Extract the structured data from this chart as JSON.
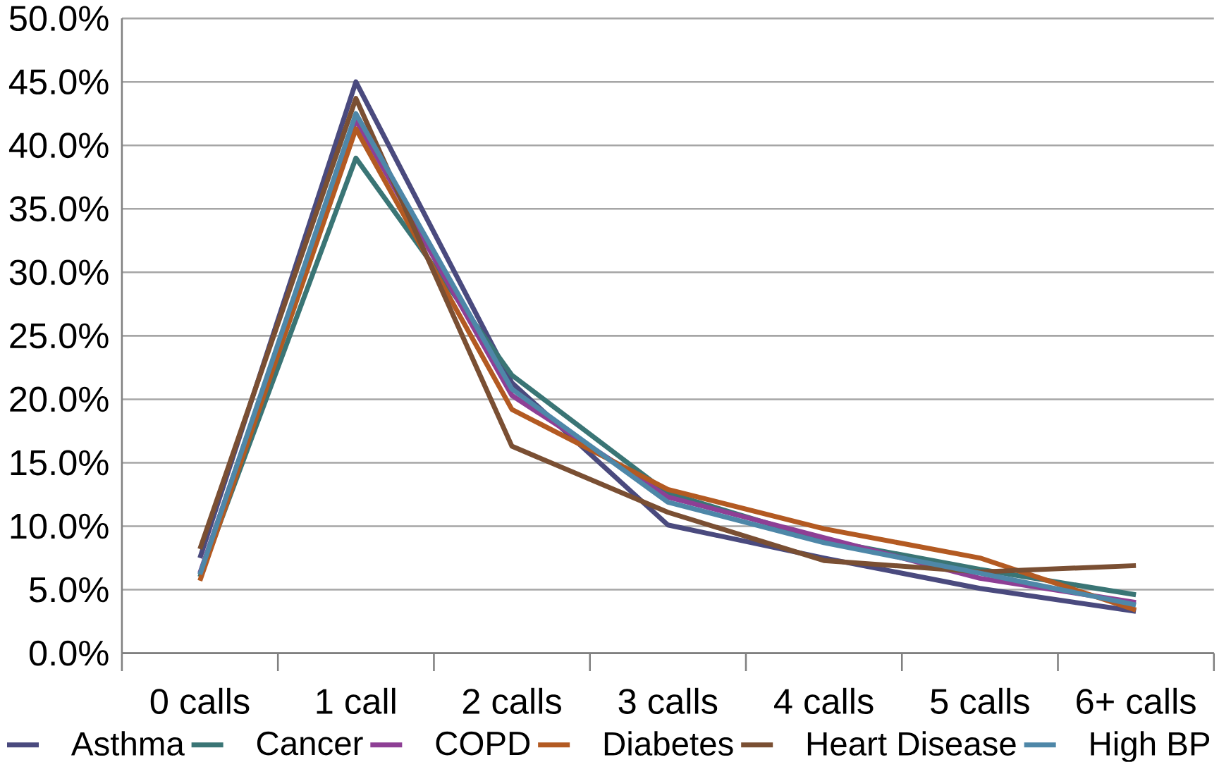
{
  "chart_data": {
    "type": "line",
    "categories": [
      "0 calls",
      "1 call",
      "2 calls",
      "3 calls",
      "4 calls",
      "5 calls",
      "6+ calls"
    ],
    "series": [
      {
        "name": "Asthma",
        "color": "#4a4a7e",
        "values": [
          7.5,
          45.0,
          21.3,
          10.1,
          7.5,
          5.1,
          3.3
        ]
      },
      {
        "name": "Cancer",
        "color": "#3a7575",
        "values": [
          6.0,
          39.0,
          21.9,
          12.6,
          8.9,
          6.6,
          4.6
        ]
      },
      {
        "name": "COPD",
        "color": "#8e3f95",
        "values": [
          6.3,
          42.0,
          20.3,
          12.3,
          9.1,
          5.9,
          4.0
        ]
      },
      {
        "name": "Diabetes",
        "color": "#b35a22",
        "values": [
          5.7,
          41.3,
          19.2,
          12.9,
          9.8,
          7.5,
          3.4
        ]
      },
      {
        "name": "Heart Disease",
        "color": "#7a4f33",
        "values": [
          8.2,
          43.7,
          16.3,
          11.1,
          7.3,
          6.4,
          6.9
        ]
      },
      {
        "name": "High BP",
        "color": "#4e87a8",
        "values": [
          6.2,
          42.5,
          20.8,
          11.9,
          8.7,
          6.3,
          3.8
        ]
      }
    ],
    "ylim": [
      0,
      50
    ],
    "yticks": [
      {
        "value": 0,
        "label": "0.0%"
      },
      {
        "value": 5,
        "label": "5.0%"
      },
      {
        "value": 10,
        "label": "10.0%"
      },
      {
        "value": 15,
        "label": "15.0%"
      },
      {
        "value": 20,
        "label": "20.0%"
      },
      {
        "value": 25,
        "label": "25.0%"
      },
      {
        "value": 30,
        "label": "30.0%"
      },
      {
        "value": 35,
        "label": "35.0%"
      },
      {
        "value": 40,
        "label": "40.0%"
      },
      {
        "value": 45,
        "label": "45.0%"
      },
      {
        "value": 50,
        "label": "50.0%"
      }
    ],
    "grid": "y",
    "legend": "bottom",
    "marker": "none",
    "line_style": "solid"
  }
}
